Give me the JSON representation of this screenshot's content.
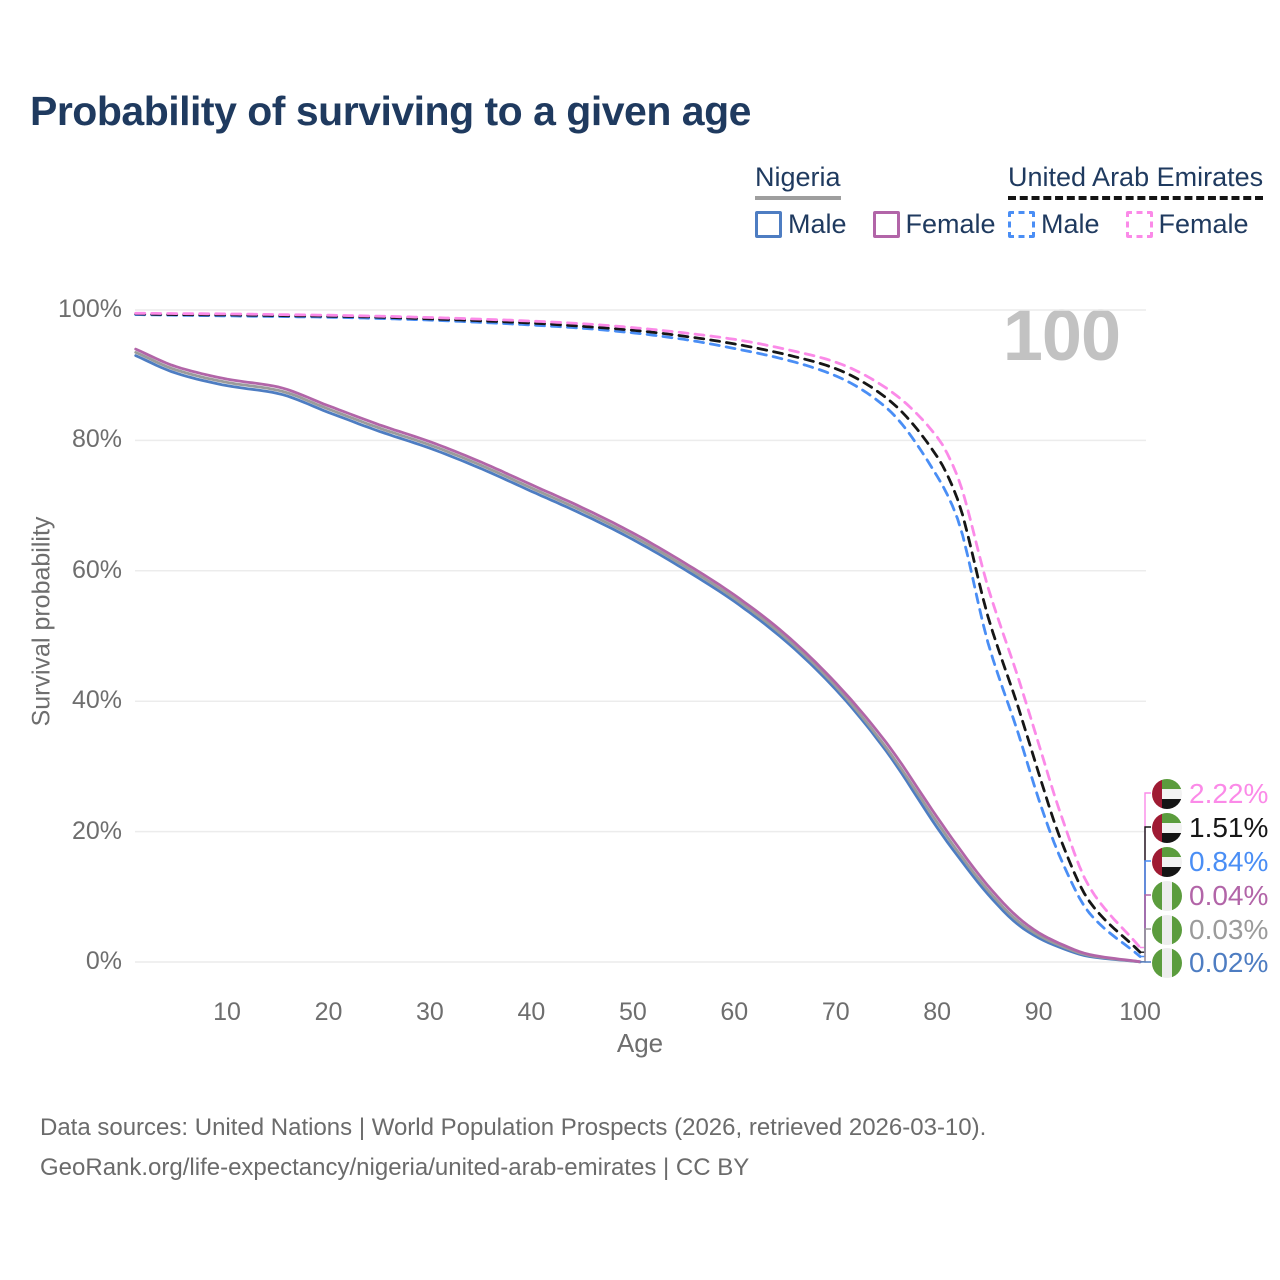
{
  "title": "Probability of surviving to a given age",
  "watermark": "100",
  "legend": {
    "groups": [
      {
        "name": "Nigeria",
        "line_style": "solid",
        "underline_color": "#9e9e9e",
        "items": [
          {
            "label": "Male",
            "color": "#4e7dc2",
            "dashed": false
          },
          {
            "label": "Female",
            "color": "#b265a8",
            "dashed": false
          }
        ]
      },
      {
        "name": "United Arab Emirates",
        "line_style": "dashed",
        "underline_color": "#141414",
        "items": [
          {
            "label": "Male",
            "color": "#4a8ef5",
            "dashed": true
          },
          {
            "label": "Female",
            "color": "#fb8ae8",
            "dashed": true
          }
        ]
      }
    ]
  },
  "axes": {
    "x_label": "Age",
    "y_label": "Survival probability",
    "x_ticks": [
      {
        "v": 10,
        "label": "10"
      },
      {
        "v": 20,
        "label": "20"
      },
      {
        "v": 30,
        "label": "30"
      },
      {
        "v": 40,
        "label": "40"
      },
      {
        "v": 50,
        "label": "50"
      },
      {
        "v": 60,
        "label": "60"
      },
      {
        "v": 70,
        "label": "70"
      },
      {
        "v": 80,
        "label": "80"
      },
      {
        "v": 90,
        "label": "90"
      },
      {
        "v": 100,
        "label": "100"
      }
    ],
    "y_ticks": [
      {
        "v": 0,
        "label": "0%"
      },
      {
        "v": 20,
        "label": "20%"
      },
      {
        "v": 40,
        "label": "40%"
      },
      {
        "v": 60,
        "label": "60%"
      },
      {
        "v": 80,
        "label": "80%"
      },
      {
        "v": 100,
        "label": "100%"
      }
    ]
  },
  "chart_data": {
    "type": "line",
    "title": "Probability of surviving to a given age",
    "xlabel": "Age",
    "ylabel": "Survival probability",
    "xlim": [
      0,
      100
    ],
    "ylim": [
      0,
      100
    ],
    "grid": "horizontal-only",
    "legend_position": "top-right",
    "x": [
      1,
      5,
      10,
      15,
      20,
      25,
      30,
      35,
      40,
      45,
      50,
      55,
      60,
      65,
      70,
      75,
      80,
      82,
      85,
      88,
      90,
      92,
      95,
      100
    ],
    "series": [
      {
        "name": "Nigeria Male",
        "country": "Nigeria",
        "sex": "Male",
        "flag": "nga",
        "color": "#4e7dc2",
        "dashed": false,
        "end_label": "0.02%",
        "values": [
          93.0,
          90.3,
          88.4,
          87.2,
          84.3,
          81.4,
          78.8,
          75.7,
          72.2,
          68.7,
          64.8,
          60.3,
          55.3,
          49.3,
          41.8,
          32.3,
          20.6,
          16.3,
          10.4,
          5.7,
          3.7,
          2.3,
          0.85,
          0.02
        ]
      },
      {
        "name": "Nigeria Both sexes",
        "country": "Nigeria",
        "sex": "Both",
        "flag": "nga",
        "color": "#9b9b9b",
        "dashed": false,
        "end_label": "0.03%",
        "values": [
          93.5,
          90.8,
          88.9,
          87.7,
          84.8,
          81.9,
          79.3,
          76.2,
          72.7,
          69.2,
          65.3,
          60.8,
          55.8,
          49.8,
          42.3,
          32.8,
          21.4,
          17.0,
          11.0,
          6.2,
          4.1,
          2.6,
          1.0,
          0.03
        ]
      },
      {
        "name": "Nigeria Female",
        "country": "Nigeria",
        "sex": "Female",
        "flag": "nga",
        "color": "#b265a8",
        "dashed": false,
        "end_label": "0.04%",
        "values": [
          94.0,
          91.3,
          89.4,
          88.2,
          85.3,
          82.4,
          79.8,
          76.7,
          73.2,
          69.7,
          65.8,
          61.3,
          56.3,
          50.3,
          42.8,
          33.6,
          22.2,
          17.8,
          11.7,
          6.8,
          4.5,
          2.9,
          1.15,
          0.04
        ]
      },
      {
        "name": "United Arab Emirates Male",
        "country": "United Arab Emirates",
        "sex": "Male",
        "flag": "are",
        "color": "#4a8ef5",
        "dashed": true,
        "end_label": "0.84%",
        "values": [
          99.3,
          99.2,
          99.1,
          99.0,
          98.9,
          98.7,
          98.45,
          98.1,
          97.7,
          97.2,
          96.5,
          95.5,
          94.1,
          92.4,
          89.9,
          85.0,
          74.5,
          68.0,
          49.0,
          35.0,
          25.0,
          16.5,
          7.5,
          0.84
        ]
      },
      {
        "name": "United Arab Emirates Both sexes",
        "country": "United Arab Emirates",
        "sex": "Both",
        "flag": "are",
        "color": "#161616",
        "dashed": true,
        "end_label": "1.51%",
        "values": [
          99.4,
          99.3,
          99.25,
          99.15,
          99.05,
          98.9,
          98.65,
          98.35,
          98.0,
          97.5,
          96.9,
          96.0,
          94.8,
          93.2,
          91.0,
          86.5,
          77.5,
          71.0,
          53.0,
          39.0,
          29.0,
          19.5,
          9.3,
          1.51
        ]
      },
      {
        "name": "United Arab Emirates Female",
        "country": "United Arab Emirates",
        "sex": "Female",
        "flag": "are",
        "color": "#fb8ae8",
        "dashed": true,
        "end_label": "2.22%",
        "values": [
          99.5,
          99.45,
          99.4,
          99.3,
          99.2,
          99.05,
          98.85,
          98.6,
          98.3,
          97.9,
          97.3,
          96.5,
          95.5,
          94.0,
          92.0,
          88.0,
          80.5,
          74.5,
          57.5,
          43.5,
          33.5,
          23.5,
          11.5,
          2.22
        ]
      }
    ],
    "end_labels": [
      {
        "text": "2.22%",
        "flag": "are",
        "series_index": 5
      },
      {
        "text": "1.51%",
        "flag": "are",
        "series_index": 4
      },
      {
        "text": "0.84%",
        "flag": "are",
        "series_index": 3
      },
      {
        "text": "0.04%",
        "flag": "nga",
        "series_index": 2
      },
      {
        "text": "0.03%",
        "flag": "nga",
        "series_index": 1
      },
      {
        "text": "0.02%",
        "flag": "nga",
        "series_index": 0
      }
    ]
  },
  "flag_colors": {
    "are": {
      "red": "#9f1b33",
      "green": "#5b9c3d",
      "white": "#f2f2f2",
      "black": "#151515"
    },
    "nga": {
      "green": "#5b9c3d",
      "white": "#ededed"
    }
  },
  "footer": {
    "line1": "Data sources: United Nations | World Population Prospects (2026, retrieved 2026-03-10).",
    "line2": "GeoRank.org/life-expectancy/nigeria/united-arab-emirates | CC BY"
  }
}
